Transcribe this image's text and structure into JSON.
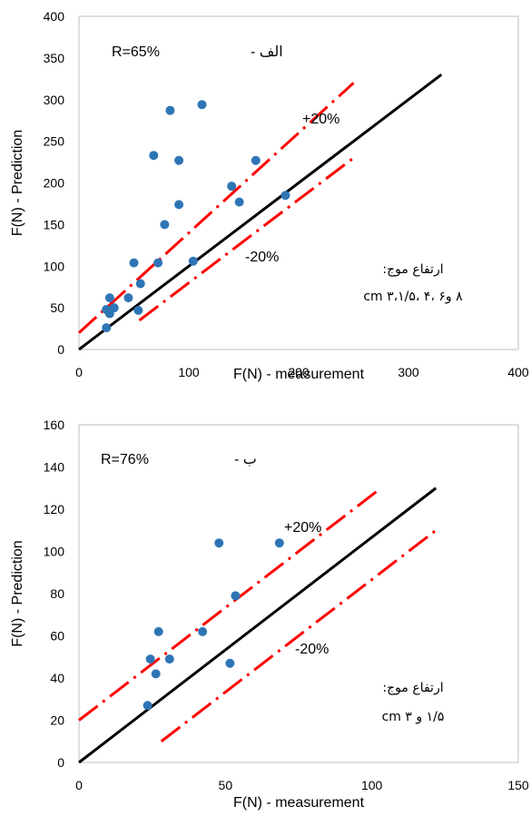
{
  "chart_data": [
    {
      "type": "scatter",
      "xlabel": "F(N) - measurement",
      "ylabel": "F(N) - Prediction",
      "xlim": [
        0,
        400
      ],
      "ylim": [
        0,
        400
      ],
      "xticks": [
        "0",
        "100",
        "200",
        "300",
        "400"
      ],
      "yticks": [
        "0",
        "50",
        "100",
        "150",
        "200",
        "250",
        "300",
        "350",
        "400"
      ],
      "grid": false,
      "annotations": {
        "r_label": "R=65%",
        "panel_label": "الف -",
        "plus_label": "+20%",
        "minus_label": "-20%",
        "wave_title": "ارتفاع موج:",
        "wave_values": "۸ و۶ ،۴ ،۳،۱/۵ cm"
      },
      "points": [
        {
          "x": 25,
          "y": 26
        },
        {
          "x": 25,
          "y": 48
        },
        {
          "x": 28,
          "y": 43
        },
        {
          "x": 28,
          "y": 62
        },
        {
          "x": 32,
          "y": 50
        },
        {
          "x": 45,
          "y": 62
        },
        {
          "x": 50,
          "y": 104
        },
        {
          "x": 54,
          "y": 47
        },
        {
          "x": 56,
          "y": 79
        },
        {
          "x": 68,
          "y": 233
        },
        {
          "x": 72,
          "y": 104
        },
        {
          "x": 78,
          "y": 150
        },
        {
          "x": 83,
          "y": 287
        },
        {
          "x": 91,
          "y": 174
        },
        {
          "x": 91,
          "y": 227
        },
        {
          "x": 104,
          "y": 106
        },
        {
          "x": 112,
          "y": 294
        },
        {
          "x": 139,
          "y": 196
        },
        {
          "x": 146,
          "y": 177
        },
        {
          "x": 161,
          "y": 227
        },
        {
          "x": 188,
          "y": 185
        }
      ],
      "colors": {
        "points": "#2e75b6",
        "identity": "#000000",
        "bounds": "#ff0000"
      },
      "lines": {
        "identity": {
          "from": 0,
          "to": 330
        },
        "upper_bound": {
          "factor": 1.2,
          "offset": 20,
          "from": 0,
          "to": 250
        },
        "lower_bound": {
          "factor": 1.0,
          "offset": -20,
          "from": 55,
          "to": 250
        }
      }
    },
    {
      "type": "scatter",
      "xlabel": "F(N) - measurement",
      "ylabel": "F(N) - Prediction",
      "xlim": [
        0,
        160
      ],
      "ylim": [
        0,
        160
      ],
      "xticks": [
        "0",
        "50",
        "100",
        "150"
      ],
      "yticks": [
        "0",
        "20",
        "40",
        "60",
        "80",
        "100",
        "120",
        "140",
        "160"
      ],
      "grid": false,
      "annotations": {
        "r_label": "R=76%",
        "panel_label": "ب -",
        "plus_label": "+20%",
        "minus_label": "-20%",
        "wave_title": "ارتفاع موج:",
        "wave_values": "۱/۵ و ۳ cm"
      },
      "points": [
        {
          "x": 25,
          "y": 27
        },
        {
          "x": 26,
          "y": 49
        },
        {
          "x": 28,
          "y": 42
        },
        {
          "x": 29,
          "y": 62
        },
        {
          "x": 33,
          "y": 49
        },
        {
          "x": 45,
          "y": 62
        },
        {
          "x": 51,
          "y": 104
        },
        {
          "x": 55,
          "y": 47
        },
        {
          "x": 57,
          "y": 79
        },
        {
          "x": 73,
          "y": 104
        }
      ],
      "colors": {
        "points": "#2e75b6",
        "identity": "#000000",
        "bounds": "#ff0000"
      },
      "lines": {
        "identity": {
          "from": 0,
          "to": 130
        },
        "upper_bound": {
          "factor": 1.0,
          "offset": 20,
          "from": 0,
          "to": 110
        },
        "lower_bound": {
          "factor": 1.0,
          "offset": -20,
          "from": 30,
          "to": 130
        }
      }
    }
  ]
}
